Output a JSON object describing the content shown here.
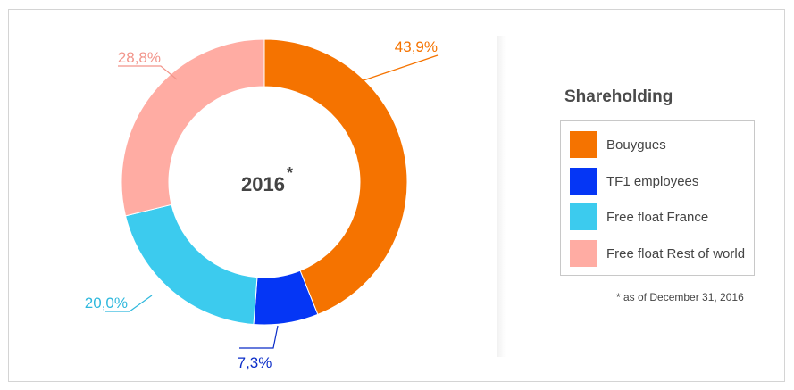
{
  "chart_data": {
    "type": "pie",
    "style": "donut",
    "center_label": "2016",
    "center_marker": "*",
    "legend_title": "Shareholding",
    "legend_position": "right",
    "slices": [
      {
        "label": "Bouygues",
        "value": 43.9,
        "display": "43,9%",
        "color": "#f57300"
      },
      {
        "label": "TF1 employees",
        "value": 7.3,
        "display": "7,3%",
        "color": "#0536f5"
      },
      {
        "label": "Free float France",
        "value": 20.0,
        "display": "20,0%",
        "color": "#3ccbee"
      },
      {
        "label": "Free float Rest of world",
        "value": 28.8,
        "display": "28,8%",
        "color": "#ffaca3"
      }
    ],
    "footnote": "* as of December 31, 2016"
  }
}
